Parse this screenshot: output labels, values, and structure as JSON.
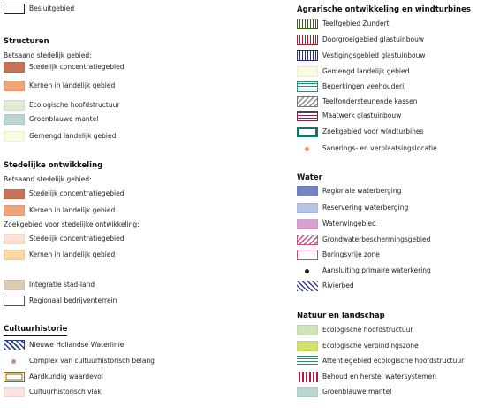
{
  "top": {
    "label": "Besluitgebied",
    "border": "#222222"
  },
  "left": [
    {
      "key": "structuren",
      "heading": "Structuren",
      "groups": [
        {
          "sub": "Betsaand stedelijk gebied:",
          "items": [
            {
              "label": "Stedelijk concentratiegebied",
              "fill": "#c47356"
            },
            {
              "label": "Kernen in landelijk gebied",
              "fill": "#f2a37a"
            }
          ]
        },
        {
          "sub": "",
          "items": [
            {
              "label": "Ecologische hoofdstructuur",
              "fill": "#e0ecd2"
            },
            {
              "label": "Groenblauwe mantel",
              "fill": "#b9d6d3"
            },
            {
              "label": "Gemengd landelijk gebied",
              "fill": "#fbfbe2"
            }
          ]
        }
      ]
    },
    {
      "key": "stedelijk",
      "heading": "Stedelijke ontwikkeling",
      "groups": [
        {
          "sub": "Betsaand stedelijk gebied:",
          "items": [
            {
              "label": "Stedelijk concentratiegebied",
              "fill": "#c47356"
            },
            {
              "label": "Kernen in landelijk gebied",
              "fill": "#f2a37a"
            }
          ]
        },
        {
          "sub": "Zoekgebied voor stedelijke ontwikkeling:",
          "items": [
            {
              "label": "Stedelijk concentratiegebied",
              "fill": "#fde1d6"
            },
            {
              "label": "Kernen in landelijk gebied",
              "fill": "#fcd9a6"
            }
          ]
        },
        {
          "sub": "",
          "items": [
            {
              "label": "Integratie stad-land",
              "fill": "#dcccb4"
            },
            {
              "label": "Regionaal bedrijventerrein",
              "fill": "#ffffff",
              "border": "#5c4a70"
            }
          ]
        }
      ]
    },
    {
      "key": "cultuur",
      "heading": "Cultuurhistorie",
      "groups": [
        {
          "sub": "",
          "items": [
            {
              "label": "Nieuwe  Hollandse Waterlinie",
              "fill": "#ffffff",
              "border": "#2c3e7a",
              "pattern": "diag-navy"
            },
            {
              "label": "Complex van cultuurhistorisch belang",
              "marker": "dot",
              "color": "#c585b8"
            },
            {
              "label": "Aardkundig waardevol",
              "fill": "#ffffff",
              "border": "#8a6b1a",
              "pattern": "double-gold"
            },
            {
              "label": "Cultuurhistorisch vlak",
              "fill": "#fbe3de"
            }
          ]
        }
      ]
    }
  ],
  "right": [
    {
      "key": "agrarisch",
      "heading": "Agrarische ontwikkeling en windturbines",
      "items": [
        {
          "label": "Teeltgebied Zundert",
          "fill": "#ffffff",
          "border": "#3f5f22",
          "pattern": "vert-green"
        },
        {
          "label": "Doorgroeigebied glastuinbouw",
          "fill": "#ffffff",
          "border": "#a0253a",
          "pattern": "vert-red"
        },
        {
          "label": "Vestigingsgebied glastuinbouw",
          "fill": "#ffffff",
          "border": "#2a2e78",
          "pattern": "vert-navy"
        },
        {
          "label": "Gemengd landelijk gebied",
          "fill": "#fbfbe2"
        },
        {
          "label": "Beperkingen veehouderij",
          "fill": "#ffffff",
          "border": "#2f8a7e",
          "pattern": "horiz-teal"
        },
        {
          "label": "Teeltondersteunende kassen",
          "fill": "#ffffff",
          "border": "#777777",
          "pattern": "diag-grey"
        },
        {
          "label": "Maatwerk glastuinbouw",
          "fill": "#ffffff",
          "border": "#7d2458",
          "pattern": "horiz-purple"
        },
        {
          "label": "Zoekgebied voor windturbines",
          "fill": "#ffffff",
          "border": "#1a6f68",
          "thick": true
        },
        {
          "label": "Sanerings- en verplaatsingslocatie",
          "marker": "dot",
          "color": "#f08a6a"
        }
      ]
    },
    {
      "key": "water",
      "heading": "Water",
      "items": [
        {
          "label": "Regionale waterberging",
          "fill": "#7683c4"
        },
        {
          "label": "Reservering waterberging",
          "fill": "#b7c4e8"
        },
        {
          "label": "Waterwingebied",
          "fill": "#d7a2d0"
        },
        {
          "label": "Grondwaterbeschermingsgebied",
          "fill": "#ffffff",
          "border": "#c0528a",
          "pattern": "diag-pink"
        },
        {
          "label": "Boringsvrije zone",
          "fill": "#ffffff",
          "border": "#c0528a"
        },
        {
          "label": "Aansluiting primaire waterkering",
          "marker": "dot",
          "color": "#222222"
        },
        {
          "label": "Rivierbed",
          "fill": "#ffffff",
          "pattern": "diag-blue"
        }
      ]
    },
    {
      "key": "natuur",
      "heading": "Natuur en landschap",
      "items": [
        {
          "label": "Ecologische hoofdstructuur",
          "fill": "#cfe3b8"
        },
        {
          "label": "Ecologische verbindingszone",
          "fill": "#d5e06a"
        },
        {
          "label": "Attentiegebied ecologische hoofdstructuur",
          "fill": "#ffffff",
          "pattern": "horiz-teal-lines"
        },
        {
          "label": "Behoud en herstel watersystemen",
          "fill": "#ffffff",
          "pattern": "vert-crimson"
        },
        {
          "label": "Groenblauwe mantel",
          "fill": "#b9d6d3"
        }
      ]
    }
  ]
}
